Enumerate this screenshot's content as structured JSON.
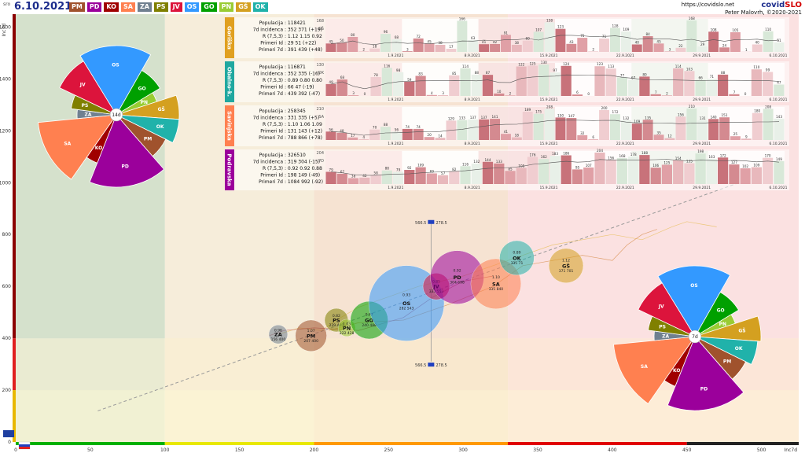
{
  "header": {
    "tag": "sro",
    "date": "6.10.2021",
    "site": "https://covidslo.net",
    "brand_a": "covid",
    "brand_b": "SLO",
    "author": "Peter Malovrh, ©2020-2021"
  },
  "colors": {
    "PM": "#a0522d",
    "PD": "#9b009b",
    "KO": "#a00000",
    "SA": "#ff8050",
    "ZA": "#708090",
    "PS": "#808000",
    "JV": "#dc143c",
    "OS": "#3399ff",
    "GO": "#00a000",
    "PN": "#99cc33",
    "GŠ": "#d4a020",
    "OK": "#20b2aa"
  },
  "region_buttons": [
    "PM",
    "PD",
    "KO",
    "SA",
    "ZA",
    "PS",
    "JV",
    "OS",
    "GO",
    "PN",
    "GŠ",
    "OK"
  ],
  "panels": [
    {
      "name": "Goriška",
      "code": "GŠ",
      "color": "#e0a020",
      "labels": [
        "Populacija",
        "7d incidenca",
        "R (7,5,3)",
        "Primeri Id",
        "Primeri 7d"
      ],
      "values": [
        ": 118421",
        ": 352 371 (+19)",
        ": 1.12 1.15 0.92",
        ": 29 51 (+22)",
        ": 391 439 (+48)"
      ],
      "ymax": "168",
      "bars": [
        45,
        50,
        80,
        2,
        18,
        96,
        68,
        3,
        72,
        45,
        38,
        17,
        166,
        63,
        41,
        42,
        91,
        38,
        60,
        107,
        158,
        123,
        43,
        75,
        2,
        71,
        128,
        109,
        40,
        84,
        45,
        3,
        22,
        168,
        29,
        108,
        24,
        105,
        1,
        40,
        110,
        51
      ],
      "dates": [
        "1.9.2021",
        "8.9.2021",
        "15.9.2021",
        "22.9.2021",
        "29.9.2021",
        "6.10.2021"
      ]
    },
    {
      "name": "Obalno-k.",
      "code": "OK",
      "color": "#20a8a0",
      "labels": [
        "Populacija",
        "7d incidenca",
        "R (7,5,3)",
        "Primeri Id",
        "Primeri 7d"
      ],
      "values": [
        ": 116871",
        ": 352 335 (-16)",
        ": 0.89 0.80 0.80",
        ": 66 47 (-19)",
        ": 439 392 (-47)"
      ],
      "ymax": "130",
      "bars": [
        49,
        68,
        3,
        0,
        78,
        116,
        98,
        59,
        83,
        4,
        3,
        85,
        114,
        88,
        87,
        10,
        2,
        122,
        125,
        130,
        97,
        124,
        6,
        0,
        123,
        113,
        77,
        67,
        80,
        7,
        2,
        114,
        103,
        66,
        71,
        88,
        7,
        0,
        110,
        99,
        47
      ],
      "dates": [
        "1.9.2021",
        "8.9.2021",
        "15.9.2021",
        "22.9.2021",
        "29.9.2021",
        "6.10.2021"
      ]
    },
    {
      "name": "Savinjska",
      "code": "SA",
      "color": "#ff8050",
      "labels": [
        "Populacija",
        "7d incidenca",
        "R (7,5,3)",
        "Primeri Id",
        "Primeri 7d"
      ],
      "values": [
        ": 258345",
        ": 331 335 (+5)",
        ": 1.10 1.06 1.09",
        ": 131 143 (+12)",
        ": 788 866 (+78)"
      ],
      "ymax": "210",
      "bars": [
        56,
        48,
        17,
        4,
        70,
        88,
        56,
        74,
        74,
        20,
        14,
        129,
        133,
        137,
        137,
        141,
        41,
        18,
        189,
        175,
        208,
        150,
        147,
        32,
        6,
        200,
        172,
        132,
        109,
        135,
        35,
        12,
        156,
        210,
        131,
        140,
        151,
        25,
        9,
        180,
        208,
        143
      ],
      "dates": [
        "1.9.2021",
        "8.9.2021",
        "15.9.2021",
        "22.9.2021",
        "29.9.2021",
        "6.10.2021"
      ]
    },
    {
      "name": "Podravska",
      "code": "PD",
      "color": "#9b009b",
      "labels": [
        "Populacija",
        "7d incidenca",
        "R (7,5,3)",
        "Primeri Id",
        "Primeri 7d"
      ],
      "values": [
        ": 326510",
        ": 319 304 (-15)",
        ": 0.92 0.92 0.88",
        ": 198 149 (-49)",
        ": 1084 992 (-92)"
      ],
      "ymax": "204",
      "bars": [
        79,
        67,
        38,
        42,
        58,
        88,
        79,
        92,
        109,
        69,
        57,
        82,
        116,
        132,
        144,
        133,
        85,
        105,
        176,
        162,
        183,
        186,
        95,
        107,
        204,
        156,
        168,
        178,
        188,
        106,
        125,
        154,
        135,
        198,
        163,
        172,
        127,
        102,
        109,
        170,
        149
      ],
      "dates": [
        "1.9.2021",
        "8.9.2021",
        "15.9.2021",
        "22.9.2021",
        "29.9.2021",
        "6.10.2021"
      ]
    }
  ],
  "chart_data": [
    {
      "type": "scatter",
      "x_label": "Inc7d",
      "y_label": "Inc7d",
      "x_ticks": [
        0,
        50,
        100,
        150,
        200,
        250,
        300,
        350,
        400,
        450,
        500
      ],
      "y_ticks": [
        0,
        200,
        400,
        600,
        800,
        1000,
        1200,
        1400,
        1600
      ],
      "xlim": [
        0,
        525
      ],
      "ylim": [
        0,
        1650
      ],
      "slovenia_marker": {
        "x": 278.5,
        "top": "566.5",
        "top_r": "278.5",
        "bottom": "566.5",
        "bottom_r": "278.5"
      },
      "bubbles": [
        {
          "code": "ZA",
          "r": "0.96",
          "inc": "156 400",
          "x": 176,
          "y": 415,
          "rad": 12
        },
        {
          "code": "PM",
          "r": "1.07",
          "inc": "207 400",
          "x": 198,
          "y": 410,
          "rad": 20
        },
        {
          "code": "PS",
          "r": "0.82",
          "inc": "229 400",
          "x": 215,
          "y": 470,
          "rad": 15
        },
        {
          "code": "PN",
          "r": "1.03",
          "inc": "222 428",
          "x": 222,
          "y": 440,
          "rad": 11
        },
        {
          "code": "GO",
          "r": "0.97",
          "inc": "240 488",
          "x": 237,
          "y": 470,
          "rad": 24
        },
        {
          "code": "OS",
          "r": "0.93",
          "inc": "282 543",
          "x": 262,
          "y": 535,
          "rad": 48
        },
        {
          "code": "JV",
          "r": "0.85",
          "inc": "333 553",
          "x": 282,
          "y": 600,
          "rad": 17
        },
        {
          "code": "PD",
          "r": "0.92",
          "inc": "304 698",
          "x": 296,
          "y": 635,
          "rad": 34
        },
        {
          "code": "SA",
          "r": "1.10",
          "inc": "335 840",
          "x": 322,
          "y": 610,
          "rad": 32
        },
        {
          "code": "OK",
          "r": "0.89",
          "inc": "335 71",
          "x": 336,
          "y": 710,
          "rad": 22
        },
        {
          "code": "GŠ",
          "r": "1.12",
          "inc": "371 701",
          "x": 369,
          "y": 680,
          "rad": 22
        }
      ]
    },
    {
      "type": "pie",
      "center_label": "14d",
      "slices": [
        {
          "code": "OS",
          "value": 15.2,
          "rad": 88
        },
        {
          "code": "GO",
          "value": 7.2,
          "rad": 65
        },
        {
          "code": "PN",
          "value": 3.3,
          "rad": 54
        },
        {
          "code": "GŠ",
          "value": 5.5,
          "rad": 80
        },
        {
          "code": "OK",
          "value": 5.5,
          "rad": 80
        },
        {
          "code": "PM",
          "value": 5.6,
          "rad": 70
        },
        {
          "code": "PD",
          "value": 15.6,
          "rad": 92
        },
        {
          "code": "KO",
          "value": 3.3,
          "rad": 66
        },
        {
          "code": "SA",
          "value": 12.3,
          "rad": 100
        },
        {
          "code": "ZA",
          "value": 3.3,
          "rad": 50
        },
        {
          "code": "PS",
          "value": 4.4,
          "rad": 58
        },
        {
          "code": "JV",
          "value": 8.2,
          "rad": 80
        }
      ]
    },
    {
      "type": "pie",
      "center_label": "7d",
      "slices": [
        {
          "code": "OS",
          "value": 15.2,
          "rad": 90
        },
        {
          "code": "GO",
          "value": 7.2,
          "rad": 65
        },
        {
          "code": "PN",
          "value": 3.3,
          "rad": 54
        },
        {
          "code": "GŠ",
          "value": 5.5,
          "rad": 84
        },
        {
          "code": "OK",
          "value": 5.5,
          "rad": 80
        },
        {
          "code": "PM",
          "value": 5.6,
          "rad": 72
        },
        {
          "code": "PD",
          "value": 15.6,
          "rad": 94
        },
        {
          "code": "KO",
          "value": 3.3,
          "rad": 68
        },
        {
          "code": "SA",
          "value": 12.3,
          "rad": 104
        },
        {
          "code": "ZA",
          "value": 3.3,
          "rad": 52
        },
        {
          "code": "PS",
          "value": 4.4,
          "rad": 60
        },
        {
          "code": "JV",
          "value": 8.2,
          "rad": 80
        }
      ]
    }
  ]
}
